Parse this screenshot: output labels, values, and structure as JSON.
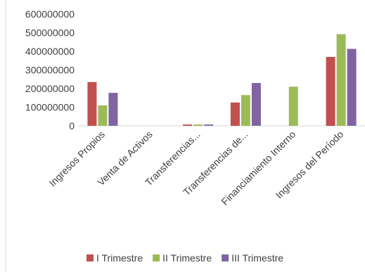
{
  "chart_data": {
    "type": "bar",
    "title": "",
    "xlabel": "",
    "ylabel": "",
    "categories": [
      "Ingresos Propios",
      "Venta de Activos",
      "Transferencias...",
      "Transferencias de...",
      "Financiamiento Interno",
      "Ingresos del Período"
    ],
    "series": [
      {
        "name": "I Trimestre",
        "color": "#C0504D",
        "values": [
          235000000,
          0,
          7000000,
          125000000,
          0,
          370000000
        ]
      },
      {
        "name": "II Trimestre",
        "color": "#9BBB59",
        "values": [
          110000000,
          0,
          7000000,
          165000000,
          210000000,
          492000000
        ]
      },
      {
        "name": "III Trimestre",
        "color": "#8064A2",
        "values": [
          177000000,
          0,
          7000000,
          230000000,
          0,
          413000000
        ]
      }
    ],
    "ylim": [
      0,
      600000000
    ],
    "yticks": [
      "0",
      "100000000",
      "200000000",
      "300000000",
      "400000000",
      "500000000",
      "600000000"
    ],
    "grid": false,
    "legend_position": "bottom"
  }
}
